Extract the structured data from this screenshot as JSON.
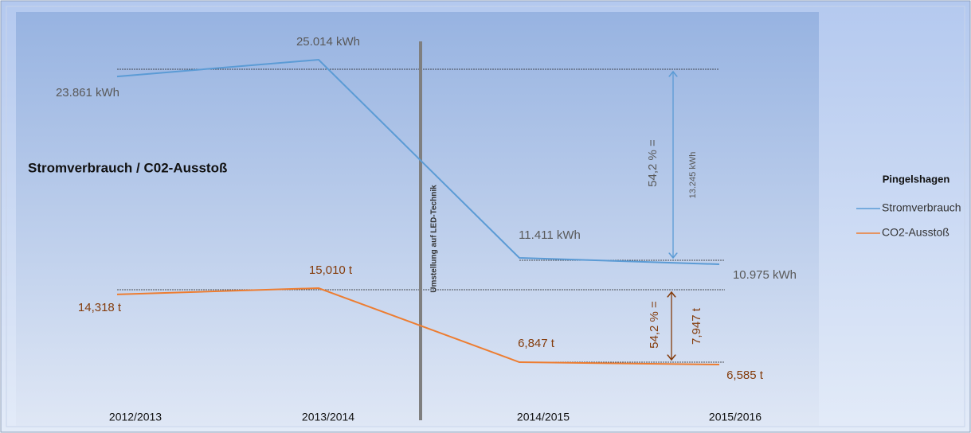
{
  "chart_data": {
    "type": "line",
    "title": "Stromverbrauch / C02-Ausstoß",
    "legend_title": "Pingelshagen",
    "categories": [
      "2012/2013",
      "2013/2014",
      "2014/2015",
      "2015/2016"
    ],
    "series": [
      {
        "name": "Stromverbrauch",
        "color": "#5b9bd5",
        "values": [
          23861,
          25014,
          11411,
          10975
        ],
        "value_labels": [
          "23.861 kWh",
          "25.014 kWh",
          "11.411 kWh",
          "10.975 kWh"
        ]
      },
      {
        "name": "CO2-Ausstoß",
        "color": "#ed7d31",
        "values": [
          14.318,
          15.01,
          6.847,
          6.585
        ],
        "value_labels": [
          "14,318 t",
          "15,010 t",
          "6,847 t",
          "6,585 t"
        ]
      }
    ],
    "annotations": {
      "transition": "Umstellung auf LED-Technik",
      "power_percent": "54,2 % =",
      "power_difference": "13.245 kWh",
      "co2_percent": "54,2 % =",
      "co2_difference": "7,947 t"
    }
  }
}
